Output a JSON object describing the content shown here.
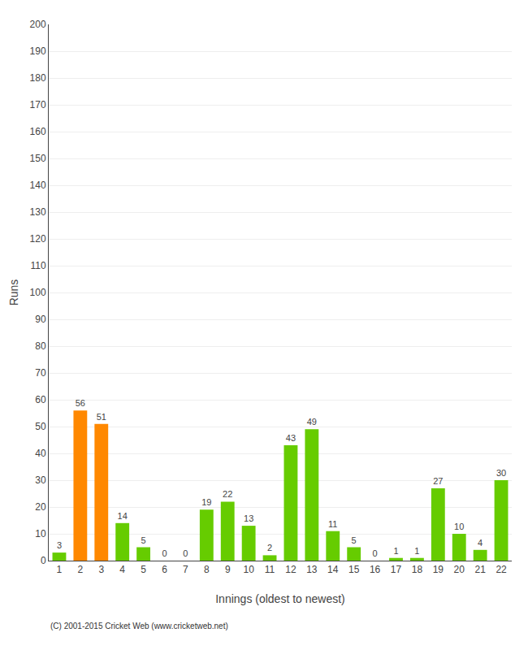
{
  "chart_data": {
    "type": "bar",
    "xlabel": "Innings (oldest to newest)",
    "ylabel": "Runs",
    "categories": [
      1,
      2,
      3,
      4,
      5,
      6,
      7,
      8,
      9,
      10,
      11,
      12,
      13,
      14,
      15,
      16,
      17,
      18,
      19,
      20,
      21,
      22
    ],
    "values": [
      3,
      56,
      51,
      14,
      5,
      0,
      0,
      19,
      22,
      13,
      2,
      43,
      49,
      11,
      5,
      0,
      1,
      1,
      27,
      10,
      4,
      30
    ],
    "colors": [
      "#66cc00",
      "#ff8800",
      "#ff8800",
      "#66cc00",
      "#66cc00",
      "#66cc00",
      "#66cc00",
      "#66cc00",
      "#66cc00",
      "#66cc00",
      "#66cc00",
      "#66cc00",
      "#66cc00",
      "#66cc00",
      "#66cc00",
      "#66cc00",
      "#66cc00",
      "#66cc00",
      "#66cc00",
      "#66cc00",
      "#66cc00",
      "#66cc00"
    ],
    "ylim": [
      0,
      200
    ],
    "yticks": [
      0,
      10,
      20,
      30,
      40,
      50,
      60,
      70,
      80,
      90,
      100,
      110,
      120,
      130,
      140,
      150,
      160,
      170,
      180,
      190,
      200
    ],
    "grid": true,
    "data_labels": true,
    "annotations": [
      "(C) 2001-2015 Cricket Web (www.cricketweb.net)"
    ]
  }
}
